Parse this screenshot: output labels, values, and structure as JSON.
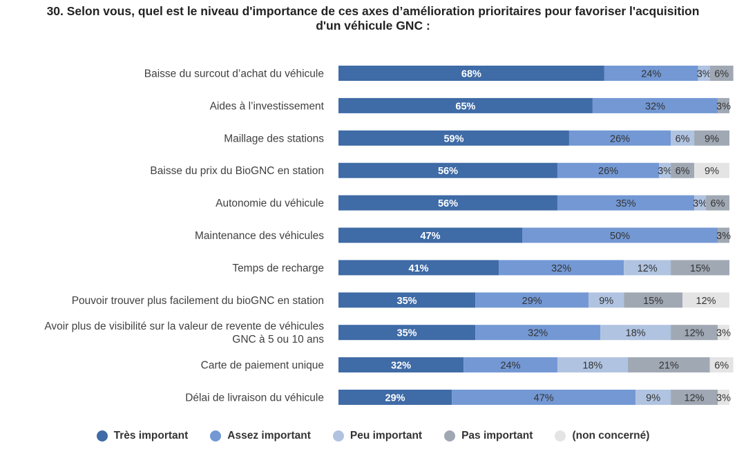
{
  "page": {
    "title_line1": "30. Selon vous, quel est le niveau d'importance de ces axes d’amélioration prioritaires pour favoriser l'acquisition",
    "title_line2": "d'un véhicule GNC :"
  },
  "chart_data": {
    "type": "bar",
    "orientation": "horizontal",
    "stacked": true,
    "percent_stacked": true,
    "title": "30. Selon vous, quel est le niveau d'importance de ces axes d’amélioration prioritaires pour favoriser l'acquisition d'un véhicule GNC :",
    "xlabel": "",
    "ylabel": "",
    "xlim": [
      0,
      100
    ],
    "grid": false,
    "legend_position": "bottom",
    "categories": [
      [
        "Baisse du surcout d’achat du véhicule"
      ],
      [
        "Aides à l’investissement"
      ],
      [
        "Maillage des stations"
      ],
      [
        "Baisse du prix du BioGNC en station"
      ],
      [
        "Autonomie du véhicule"
      ],
      [
        "Maintenance des véhicules"
      ],
      [
        "Temps de recharge"
      ],
      [
        "Pouvoir trouver plus facilement du bioGNC en station"
      ],
      [
        "Avoir plus de visibilité sur la valeur de revente de véhicules",
        "GNC à 5 ou 10 ans"
      ],
      [
        "Carte de paiement unique"
      ],
      [
        "Délai de livraison du véhicule"
      ]
    ],
    "series": [
      {
        "name": "Très important",
        "color": "#3f6ba6",
        "label_color": "#ffffff",
        "label_bold": true,
        "values": [
          68,
          65,
          59,
          56,
          56,
          47,
          41,
          35,
          35,
          32,
          29
        ]
      },
      {
        "name": "Assez important",
        "color": "#7398d4",
        "label_color": "#333333",
        "label_bold": false,
        "values": [
          24,
          32,
          26,
          26,
          35,
          50,
          32,
          29,
          32,
          24,
          47
        ]
      },
      {
        "name": "Peu important",
        "color": "#b0c3e0",
        "label_color": "#333333",
        "label_bold": false,
        "values": [
          3,
          0,
          6,
          3,
          3,
          0,
          12,
          9,
          18,
          18,
          9
        ]
      },
      {
        "name": "Pas important",
        "color": "#a0a8b4",
        "label_color": "#333333",
        "label_bold": false,
        "values": [
          6,
          3,
          9,
          6,
          6,
          3,
          15,
          15,
          12,
          21,
          12
        ]
      },
      {
        "name": "(non concerné)",
        "color": "#e4e4e4",
        "label_color": "#333333",
        "label_bold": false,
        "values": [
          0,
          0,
          0,
          9,
          0,
          0,
          0,
          12,
          3,
          6,
          3
        ]
      }
    ],
    "value_suffix": "%"
  }
}
